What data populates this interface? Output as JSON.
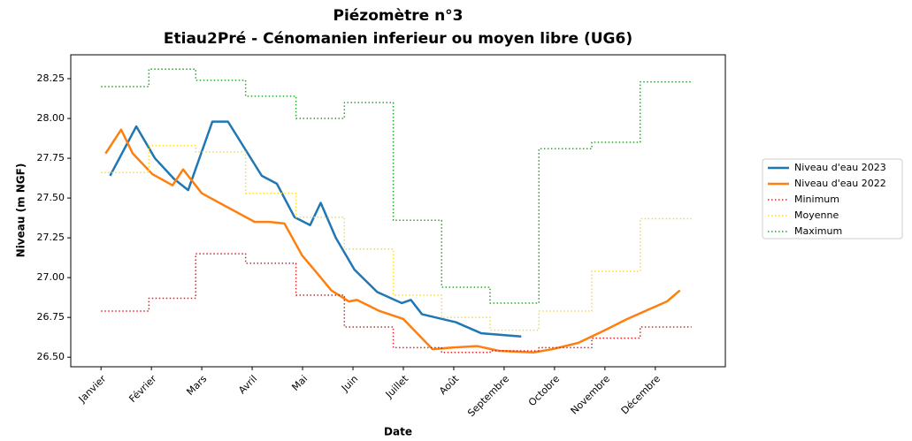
{
  "chart_data": {
    "type": "line",
    "title": "Piézomètre n°3",
    "subtitle": "Etiau2Pré - Cénomanien inferieur ou moyen libre (UG6)",
    "xlabel": "Date",
    "ylabel": "Niveau (m NGF)",
    "xlim": [
      -0.6,
      12.39
    ],
    "ylim": [
      26.44,
      28.4
    ],
    "xticks": [
      {
        "value": 0,
        "label": "Janvier"
      },
      {
        "value": 1,
        "label": "Février"
      },
      {
        "value": 2,
        "label": "Mars"
      },
      {
        "value": 3,
        "label": "Avril"
      },
      {
        "value": 4,
        "label": "Mai"
      },
      {
        "value": 5,
        "label": "Juin"
      },
      {
        "value": 6,
        "label": "Juillet"
      },
      {
        "value": 7,
        "label": "Août"
      },
      {
        "value": 8,
        "label": "Septembre"
      },
      {
        "value": 9,
        "label": "Octobre"
      },
      {
        "value": 10,
        "label": "Novembre"
      },
      {
        "value": 11,
        "label": "Décembre"
      }
    ],
    "yticks": [
      {
        "value": 26.5,
        "label": "26.50"
      },
      {
        "value": 26.75,
        "label": "26.75"
      },
      {
        "value": 27,
        "label": "27.00"
      },
      {
        "value": 27.25,
        "label": "27.25"
      },
      {
        "value": 27.5,
        "label": "27.50"
      },
      {
        "value": 27.75,
        "label": "27.75"
      },
      {
        "value": 28,
        "label": "28.00"
      },
      {
        "value": 28.25,
        "label": "28.25"
      }
    ],
    "legend": "outside right",
    "series": [
      {
        "name": "Niveau d'eau 2023",
        "color": "#1f77b4",
        "linestyle": "solid",
        "drawstyle": "default",
        "x": [
          0.18,
          0.7,
          1.07,
          1.45,
          1.73,
          2.21,
          2.52,
          3.19,
          3.49,
          3.84,
          4.15,
          4.36,
          4.66,
          5.03,
          5.48,
          5.97,
          6.15,
          6.37,
          7.04,
          7.55,
          8.34
        ],
        "values": [
          27.64,
          27.95,
          27.75,
          27.62,
          27.55,
          27.98,
          27.98,
          27.64,
          27.59,
          27.38,
          27.33,
          27.47,
          27.25,
          27.05,
          26.91,
          26.84,
          26.86,
          26.77,
          26.72,
          26.65,
          26.63
        ]
      },
      {
        "name": "Niveau d'eau 2022",
        "color": "#ff7f0e",
        "linestyle": "solid",
        "drawstyle": "default",
        "x": [
          0.09,
          0.4,
          0.63,
          1.02,
          1.42,
          1.63,
          2.0,
          2.29,
          3.05,
          3.35,
          3.64,
          3.99,
          4.31,
          4.57,
          4.92,
          5.08,
          5.53,
          6.0,
          6.58,
          6.94,
          7.46,
          7.9,
          8.58,
          8.95,
          9.47,
          10.0,
          10.44,
          11.23,
          11.49
        ],
        "values": [
          27.78,
          27.93,
          27.78,
          27.65,
          27.58,
          27.68,
          27.53,
          27.48,
          27.35,
          27.35,
          27.34,
          27.14,
          27.02,
          26.92,
          26.85,
          26.86,
          26.79,
          26.74,
          26.55,
          26.56,
          26.57,
          26.54,
          26.53,
          26.55,
          26.59,
          26.67,
          26.74,
          26.85,
          26.92
        ]
      },
      {
        "name": "Minimum",
        "color": "#d62728",
        "linestyle": "dotted",
        "drawstyle": "steps-post",
        "x": [
          0,
          0.95,
          1.88,
          2.87,
          3.87,
          4.83,
          5.8,
          6.76,
          7.72,
          8.69,
          9.74,
          10.7,
          11.72
        ],
        "values": [
          26.79,
          26.87,
          27.15,
          27.09,
          26.89,
          26.69,
          26.56,
          26.53,
          26.54,
          26.56,
          26.62,
          26.69,
          26.69
        ]
      },
      {
        "name": "Moyenne",
        "color": "#ffd92f",
        "linestyle": "dotted",
        "drawstyle": "steps-post",
        "x": [
          0,
          0.95,
          1.88,
          2.87,
          3.87,
          4.83,
          5.8,
          6.76,
          7.72,
          8.69,
          9.74,
          10.7,
          11.72
        ],
        "values": [
          27.66,
          27.83,
          27.79,
          27.53,
          27.38,
          27.18,
          26.89,
          26.75,
          26.67,
          26.79,
          27.04,
          27.37,
          27.37
        ]
      },
      {
        "name": "Maximum",
        "color": "#2ca02c",
        "linestyle": "dotted",
        "drawstyle": "steps-post",
        "x": [
          0,
          0.95,
          1.88,
          2.87,
          3.87,
          4.83,
          5.8,
          6.76,
          7.72,
          8.69,
          9.74,
          10.7,
          11.72
        ],
        "values": [
          28.2,
          28.31,
          28.24,
          28.14,
          28.0,
          28.1,
          27.36,
          26.94,
          26.84,
          27.81,
          27.85,
          28.23,
          28.23
        ]
      }
    ]
  }
}
